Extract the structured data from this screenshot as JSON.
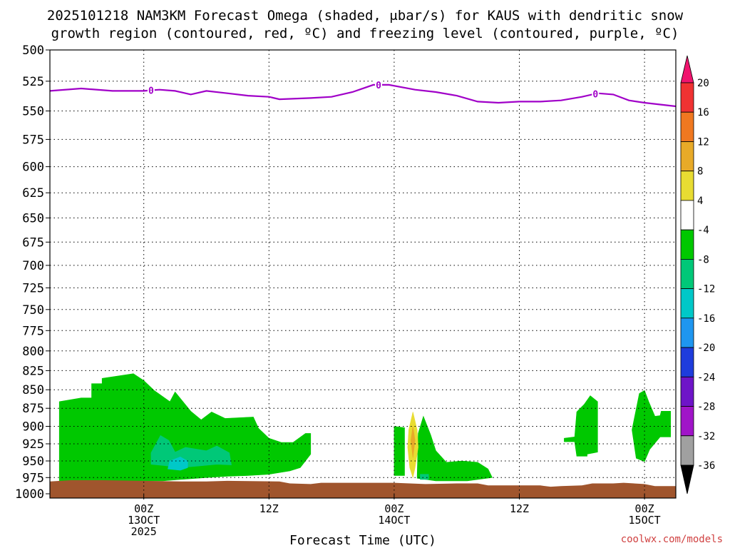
{
  "chart_data": {
    "type": "heatmap",
    "title_lines": [
      "2025101218 NAM3KM Forecast Omega (shaded, μbar/s) for KAUS with dendritic snow",
      "growth region (contoured, red, ºC) and freezing level (contoured, purple, ºC)"
    ],
    "xlabel": "Forecast Time (UTC)",
    "credit": "coolwx.com/models",
    "x_range_hours": [
      -9,
      51
    ],
    "y_range_hpa": [
      500,
      1000
    ],
    "y_scale": "log-pressure (inverted)",
    "y_ticks": [
      500,
      525,
      550,
      575,
      600,
      625,
      650,
      675,
      700,
      725,
      750,
      775,
      800,
      825,
      850,
      875,
      900,
      925,
      950,
      975,
      1000
    ],
    "x_ticks": [
      {
        "hour": 0,
        "lines": [
          "00Z",
          "13OCT",
          "2025"
        ]
      },
      {
        "hour": 12,
        "lines": [
          "12Z"
        ]
      },
      {
        "hour": 24,
        "lines": [
          "00Z",
          "14OCT"
        ]
      },
      {
        "hour": 36,
        "lines": [
          "12Z"
        ]
      },
      {
        "hour": 48,
        "lines": [
          "00Z",
          "15OCT"
        ]
      }
    ],
    "grid": true,
    "colorbar": {
      "position": "right",
      "labels": [
        "20",
        "16",
        "12",
        "8",
        "4",
        "-4",
        "-8",
        "-12",
        "-16",
        "-20",
        "-24",
        "-28",
        "-32",
        "-36"
      ],
      "colors": [
        "#f0146e",
        "#f03232",
        "#f07820",
        "#e8aa28",
        "#e8dc32",
        "#ffffff",
        "#00c800",
        "#00c878",
        "#00c8c8",
        "#1e96f0",
        "#1e3cdc",
        "#6e14c8",
        "#a014c8",
        "#a0a0a0",
        "#000000"
      ]
    },
    "freezing_level": {
      "label": "0",
      "color": "#a000c8",
      "points": [
        [
          -9,
          533
        ],
        [
          -6,
          531
        ],
        [
          -3,
          533
        ],
        [
          0,
          533
        ],
        [
          1.5,
          532
        ],
        [
          3,
          533
        ],
        [
          4.5,
          536
        ],
        [
          6,
          533
        ],
        [
          8,
          535
        ],
        [
          10,
          537
        ],
        [
          12,
          538
        ],
        [
          13,
          540
        ],
        [
          16,
          539
        ],
        [
          18,
          538
        ],
        [
          20,
          534
        ],
        [
          22,
          528
        ],
        [
          23.5,
          528
        ],
        [
          26,
          532
        ],
        [
          28,
          534
        ],
        [
          30,
          537
        ],
        [
          32,
          542
        ],
        [
          34,
          543
        ],
        [
          36,
          542
        ],
        [
          38,
          542
        ],
        [
          40,
          541
        ],
        [
          42,
          538
        ],
        [
          43.5,
          535
        ],
        [
          45,
          536
        ],
        [
          46.5,
          541
        ],
        [
          48,
          543
        ],
        [
          51,
          546
        ]
      ],
      "marker_hours": [
        0.7,
        22.5,
        43.3
      ]
    },
    "omega_regions": [
      {
        "value_class": "-4",
        "color": "#00c800",
        "points": [
          [
            -8.1,
            980
          ],
          [
            -8.1,
            866
          ],
          [
            -6,
            861
          ],
          [
            -5,
            861
          ],
          [
            -5,
            842
          ],
          [
            -4,
            842
          ],
          [
            -4,
            835
          ],
          [
            -1,
            829
          ],
          [
            0,
            838
          ],
          [
            1,
            851
          ],
          [
            2.5,
            866
          ],
          [
            3,
            853
          ],
          [
            4.5,
            879
          ],
          [
            5.5,
            891
          ],
          [
            6.5,
            880
          ],
          [
            7.8,
            889
          ],
          [
            10.5,
            887
          ],
          [
            11,
            903
          ],
          [
            12,
            917
          ],
          [
            13.2,
            923
          ],
          [
            14.3,
            923
          ],
          [
            15.5,
            910
          ],
          [
            16,
            910
          ],
          [
            16,
            940
          ],
          [
            15,
            960
          ],
          [
            14,
            965
          ],
          [
            12,
            970
          ],
          [
            10,
            972
          ],
          [
            8,
            973
          ],
          [
            6,
            975
          ],
          [
            3.5,
            978
          ],
          [
            1.8,
            980
          ],
          [
            0,
            980
          ],
          [
            -4,
            982
          ],
          [
            -8.1,
            980
          ]
        ]
      },
      {
        "value_class": "-8",
        "color": "#00c878",
        "points": [
          [
            0.7,
            955
          ],
          [
            0.7,
            938
          ],
          [
            1.6,
            913
          ],
          [
            2.4,
            920
          ],
          [
            3,
            937
          ],
          [
            4,
            930
          ],
          [
            6,
            935
          ],
          [
            7,
            928
          ],
          [
            8.2,
            938
          ],
          [
            8.4,
            956
          ],
          [
            7,
            955
          ],
          [
            5,
            958
          ],
          [
            3.5,
            960
          ],
          [
            2,
            957
          ],
          [
            0.7,
            955
          ]
        ]
      },
      {
        "value_class": "-12",
        "color": "#00c8c8",
        "points": [
          [
            2.3,
            962
          ],
          [
            2.5,
            950
          ],
          [
            3.5,
            944
          ],
          [
            4.2,
            950
          ],
          [
            4.2,
            960
          ],
          [
            3.5,
            964
          ],
          [
            2.3,
            962
          ]
        ]
      },
      {
        "value_class": "-4",
        "color": "#00c800",
        "points": [
          [
            24,
            900
          ],
          [
            25,
            902
          ],
          [
            25,
            972
          ],
          [
            24,
            972
          ],
          [
            24,
            900
          ]
        ]
      },
      {
        "value_class": "-4",
        "color": "#00c800",
        "points": [
          [
            26.3,
            910
          ],
          [
            26.8,
            886
          ],
          [
            27.5,
            912
          ],
          [
            28,
            935
          ],
          [
            29,
            952
          ],
          [
            30.5,
            950
          ],
          [
            32,
            952
          ],
          [
            33,
            962
          ],
          [
            33.4,
            975
          ],
          [
            31,
            980
          ],
          [
            28,
            980
          ],
          [
            26.2,
            976
          ],
          [
            26.3,
            910
          ]
        ]
      },
      {
        "value_class": "-8",
        "color": "#00c878",
        "points": [
          [
            26.5,
            970
          ],
          [
            27.3,
            970
          ],
          [
            27.3,
            978
          ],
          [
            26.5,
            978
          ],
          [
            26.5,
            970
          ]
        ]
      },
      {
        "value_class": "4",
        "color": "#e8dc32",
        "points": [
          [
            25.8,
            880
          ],
          [
            26.2,
            905
          ],
          [
            26.3,
            930
          ],
          [
            26,
            960
          ],
          [
            25.8,
            975
          ],
          [
            25.5,
            960
          ],
          [
            25.3,
            930
          ],
          [
            25.4,
            905
          ],
          [
            25.8,
            880
          ]
        ]
      },
      {
        "value_class": "8",
        "color": "#e8aa28",
        "points": [
          [
            25.8,
            900
          ],
          [
            26,
            920
          ],
          [
            25.8,
            945
          ],
          [
            25.6,
            920
          ],
          [
            25.8,
            900
          ]
        ]
      },
      {
        "value_class": "-4",
        "color": "#00c800",
        "points": [
          [
            40.3,
            917
          ],
          [
            41.3,
            915
          ],
          [
            41.5,
            880
          ],
          [
            42.2,
            870
          ],
          [
            42.8,
            858
          ],
          [
            43.5,
            866
          ],
          [
            43.5,
            937
          ],
          [
            42.5,
            940
          ],
          [
            42.5,
            943
          ],
          [
            41.5,
            943
          ],
          [
            41.3,
            922
          ],
          [
            40.3,
            922
          ],
          [
            40.3,
            917
          ]
        ]
      },
      {
        "value_class": "-4",
        "color": "#00c800",
        "points": [
          [
            46.8,
            905
          ],
          [
            47.5,
            855
          ],
          [
            48,
            851
          ],
          [
            48.4,
            866
          ],
          [
            49,
            886
          ],
          [
            49.5,
            885
          ],
          [
            49.6,
            879
          ],
          [
            50.5,
            879
          ],
          [
            50.5,
            915
          ],
          [
            49.5,
            915
          ],
          [
            48.5,
            933
          ],
          [
            48,
            951
          ],
          [
            47.2,
            946
          ],
          [
            46.8,
            905
          ]
        ]
      }
    ],
    "terrain": {
      "color": "#a0552d",
      "top_points": [
        [
          -9,
          981
        ],
        [
          -7,
          979
        ],
        [
          -4,
          979
        ],
        [
          0,
          980
        ],
        [
          4,
          981
        ],
        [
          6,
          981
        ],
        [
          8,
          980
        ],
        [
          13,
          981
        ],
        [
          14,
          984
        ],
        [
          16,
          985
        ],
        [
          17,
          983
        ],
        [
          20,
          983
        ],
        [
          24,
          983
        ],
        [
          27,
          985
        ],
        [
          30,
          984
        ],
        [
          32,
          984
        ],
        [
          33,
          987
        ],
        [
          38,
          987
        ],
        [
          39,
          989
        ],
        [
          40,
          988
        ],
        [
          42,
          987
        ],
        [
          43,
          984
        ],
        [
          45,
          984
        ],
        [
          46,
          983
        ],
        [
          48,
          985
        ],
        [
          49,
          988
        ],
        [
          51,
          988
        ]
      ]
    }
  }
}
